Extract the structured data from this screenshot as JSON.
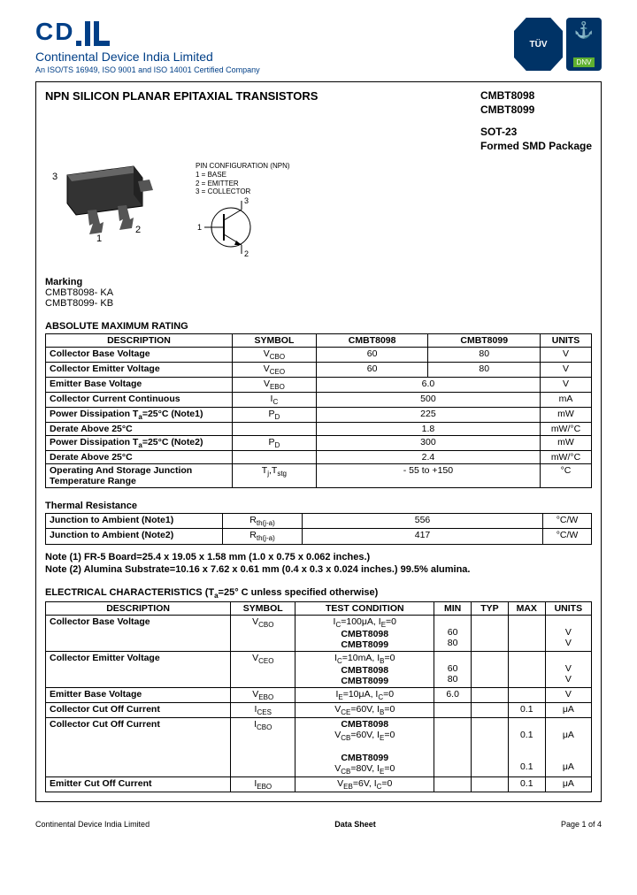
{
  "header": {
    "logo_text": "CD",
    "company": "Continental Device India Limited",
    "iso": "An ISO/TS 16949, ISO 9001 and ISO 14001 Certified Company"
  },
  "title": "NPN SILICON PLANAR EPITAXIAL TRANSISTORS",
  "parts": {
    "p1": "CMBT8098",
    "p2": "CMBT8099",
    "pkg1": "SOT-23",
    "pkg2": "Formed SMD Package"
  },
  "pinconf": {
    "h": "PIN CONFIGURATION (NPN)",
    "l1": "1 = BASE",
    "l2": "2 = EMITTER",
    "l3": "3 = COLLECTOR"
  },
  "marking": {
    "h": "Marking",
    "m1": "CMBT8098- KA",
    "m2": "CMBT8099- KB"
  },
  "amr": {
    "title": "ABSOLUTE MAXIMUM RATING",
    "headers": {
      "desc": "DESCRIPTION",
      "sym": "SYMBOL",
      "p1": "CMBT8098",
      "p2": "CMBT8099",
      "units": "UNITS"
    },
    "rows": [
      {
        "d": "Collector Base Voltage",
        "s": "V<sub>CBO</sub>",
        "v1": "60",
        "v2": "80",
        "u": "V"
      },
      {
        "d": "Collector Emitter Voltage",
        "s": "V<sub>CEO</sub>",
        "v1": "60",
        "v2": "80",
        "u": "V"
      },
      {
        "d": "Emitter Base Voltage",
        "s": "V<sub>EBO</sub>",
        "span": "6.0",
        "u": "V"
      },
      {
        "d": "Collector Current Continuous",
        "s": "I<sub>C</sub>",
        "span": "500",
        "u": "mA"
      },
      {
        "d": "Power Dissipation T<sub>a</sub>=25°C  (Note1)",
        "s": "P<sub>D</sub>",
        "span": "225",
        "u": "mW"
      },
      {
        "d": "Derate Above 25°C",
        "s": "",
        "span": "1.8",
        "u": "mW/°C"
      },
      {
        "d": "Power Dissipation T<sub>a</sub>=25°C  (Note2)",
        "s": "P<sub>D</sub>",
        "span": "300",
        "u": "mW"
      },
      {
        "d": "Derate Above 25°C",
        "s": "",
        "span": "2.4",
        "u": "mW/°C"
      },
      {
        "d": "Operating And Storage Junction\nTemperature Range",
        "s": "T<sub>j</sub>,T<sub>stg</sub>",
        "span": "- 55 to +150",
        "u": "°C"
      }
    ]
  },
  "thermal": {
    "title": "Thermal Resistance",
    "rows": [
      {
        "d": "Junction to Ambient (Note1)",
        "s": "R<sub>th(j-a)</sub>",
        "v": "556",
        "u": "°C/W"
      },
      {
        "d": "Junction to Ambient (Note2)",
        "s": "R<sub>th(j-a)</sub>",
        "v": "417",
        "u": "°C/W"
      }
    ]
  },
  "notes": {
    "n1": "Note (1) FR-5 Board=25.4 x 19.05 x 1.58 mm (1.0 x 0.75 x 0.062 inches.)",
    "n2": "Note (2) Alumina Substrate=10.16 x 7.62 x 0.61 mm  (0.4 x 0.3 x 0.024 inches.) 99.5% alumina."
  },
  "elec": {
    "title": "ELECTRICAL CHARACTERISTICS  (T<sub>a</sub>=25° C unless specified otherwise)",
    "headers": {
      "desc": "DESCRIPTION",
      "sym": "SYMBOL",
      "tc": "TEST CONDITION",
      "min": "MIN",
      "typ": "TYP",
      "max": "MAX",
      "units": "UNITS"
    },
    "rows": [
      {
        "d": "Collector Base Voltage",
        "s": "V<sub>CBO</sub>",
        "tc": "I<sub>C</sub>=100μA, I<sub>E</sub>=0<br><b>CMBT8098</b><br><b>CMBT8099</b>",
        "min": "<br>60<br>80",
        "typ": "",
        "max": "",
        "u": "<br>V<br>V"
      },
      {
        "d": "Collector Emitter Voltage",
        "s": "V<sub>CEO</sub>",
        "tc": "I<sub>C</sub>=10mA, I<sub>B</sub>=0<br><b>CMBT8098</b><br><b>CMBT8099</b>",
        "min": "<br>60<br>80",
        "typ": "",
        "max": "",
        "u": "<br>V<br>V"
      },
      {
        "d": "Emitter Base Voltage",
        "s": "V<sub>EBO</sub>",
        "tc": "I<sub>E</sub>=10μA, I<sub>C</sub>=0",
        "min": "6.0",
        "typ": "",
        "max": "",
        "u": "V"
      },
      {
        "d": "Collector Cut Off Current",
        "s": "I<sub>CES</sub>",
        "tc": "V<sub>CE</sub>=60V, I<sub>B</sub>=0",
        "min": "",
        "typ": "",
        "max": "0.1",
        "u": "μA"
      },
      {
        "d": "Collector Cut Off Current",
        "s": "I<sub>CBO</sub>",
        "tc": "<b>CMBT8098</b><br>V<sub>CB</sub>=60V, I<sub>E</sub>=0<br><br><b>CMBT8099</b><br>V<sub>CB</sub>=80V, I<sub>E</sub>=0",
        "min": "",
        "typ": "",
        "max": "<br>0.1<br><br><br>0.1",
        "u": "<br>μA<br><br><br>μA"
      },
      {
        "d": "Emitter Cut Off Current",
        "s": "I<sub>EBO</sub>",
        "tc": "V<sub>EB</sub>=6V, I<sub>C</sub>=0",
        "min": "",
        "typ": "",
        "max": "0.1",
        "u": "μA"
      }
    ]
  },
  "footer": {
    "left": "Continental Device India Limited",
    "mid": "Data Sheet",
    "right": "Page 1 of 4"
  },
  "colors": {
    "brand": "#003f87",
    "border": "#000000",
    "bg": "#ffffff"
  }
}
